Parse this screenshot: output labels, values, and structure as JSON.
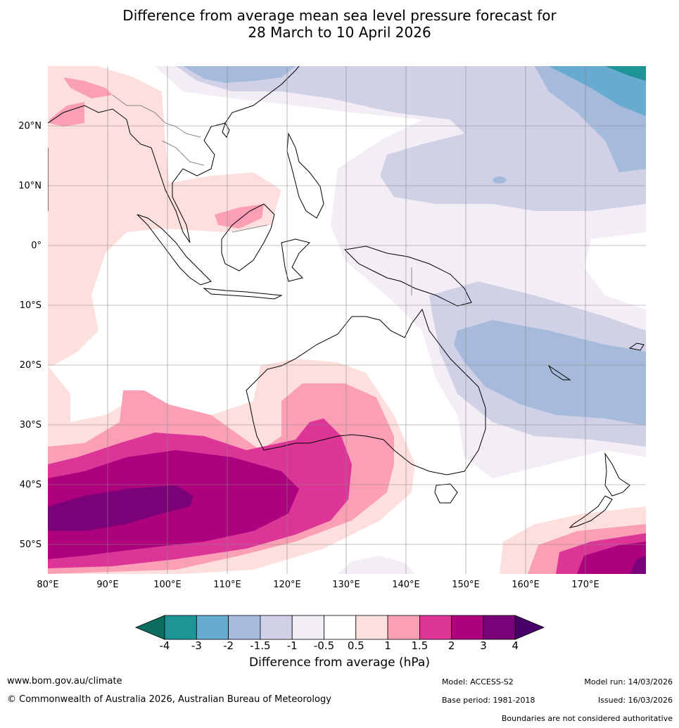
{
  "title": {
    "line1": "Difference from average mean sea level pressure forecast for",
    "line2": "28 March to 10 April 2026"
  },
  "map": {
    "lat_labels": [
      "20°N",
      "10°N",
      "0°",
      "10°S",
      "20°S",
      "30°S",
      "40°S",
      "50°S"
    ],
    "lon_labels": [
      "80°E",
      "90°E",
      "100°E",
      "110°E",
      "120°E",
      "130°E",
      "140°E",
      "150°E",
      "160°E",
      "170°E"
    ]
  },
  "colorbar": {
    "ticks": [
      "-4",
      "-3",
      "-2",
      "-1.5",
      "-1",
      "-0.5",
      "0.5",
      "1",
      "1.5",
      "2",
      "3",
      "4"
    ],
    "colors": [
      "#0b6e60",
      "#1e9496",
      "#67abd0",
      "#a6bbdb",
      "#d0d1e6",
      "#f3eef6",
      "#ffffff",
      "#fde0dd",
      "#fa9fb5",
      "#dd3497",
      "#ae017e",
      "#7a0177",
      "#49006a"
    ],
    "label": "Difference from average (hPa)"
  },
  "footer": {
    "url": "www.bom.gov.au/climate",
    "copyright": "© Commonwealth of Australia 2026, Australian Bureau of Meteorology",
    "model": "Model: ACCESS-S2",
    "base_period": "Base period: 1981-2018",
    "model_run": "Model run: 14/03/2026",
    "issued": "Issued: 16/03/2026",
    "disclaimer": "Boundaries are not considered authoritative"
  }
}
